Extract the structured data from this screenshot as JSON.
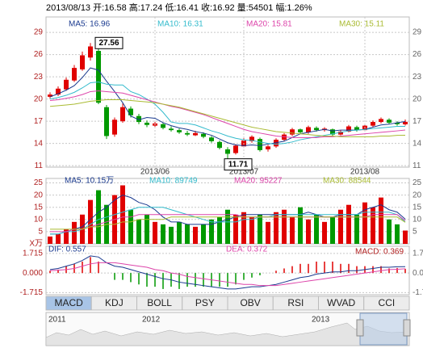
{
  "header": "2013/08/13 开:16.58 高:17.24 低:16.41 收:16.92 量:54501 幅:1.26%",
  "tabs": [
    "MACD",
    "KDJ",
    "BOLL",
    "PSY",
    "OBV",
    "RSI",
    "WVAD",
    "CCI"
  ],
  "navigator": {
    "labels": [
      "2011",
      "2012",
      "2013"
    ]
  },
  "chart_data": [
    {
      "type": "candlestick",
      "up_color": "#e00000",
      "down_color": "#009900",
      "categories": [
        null,
        null,
        null,
        null,
        null,
        null,
        null,
        null,
        null,
        null,
        null,
        null,
        null,
        "2013/06",
        null,
        null,
        null,
        null,
        null,
        null,
        null,
        null,
        null,
        null,
        "2013/07",
        null,
        null,
        null,
        null,
        null,
        null,
        null,
        null,
        null,
        null,
        null,
        null,
        null,
        null,
        "2013/08",
        null,
        null,
        null,
        null,
        null
      ],
      "ohlc": [
        [
          20.3,
          20.9,
          20.1,
          20.6
        ],
        [
          20.6,
          21.7,
          20.4,
          21.4
        ],
        [
          21.3,
          22.9,
          21.1,
          22.6
        ],
        [
          22.5,
          24.6,
          22.3,
          24.2
        ],
        [
          24.0,
          26.4,
          23.8,
          25.9
        ],
        [
          25.6,
          27.56,
          25.2,
          27.1
        ],
        [
          26.5,
          26.8,
          19.3,
          19.5
        ],
        [
          18.9,
          19.2,
          14.6,
          15.0
        ],
        [
          15.2,
          17.5,
          14.9,
          17.2
        ],
        [
          17.0,
          19.4,
          16.8,
          18.9
        ],
        [
          18.7,
          19.0,
          17.5,
          17.8
        ],
        [
          17.7,
          18.0,
          16.6,
          16.9
        ],
        [
          16.8,
          17.1,
          16.2,
          16.5
        ],
        [
          16.4,
          17.0,
          16.2,
          16.7
        ],
        [
          16.6,
          16.8,
          15.9,
          16.1
        ],
        [
          16.0,
          16.3,
          15.6,
          15.8
        ],
        [
          15.8,
          16.0,
          15.3,
          15.5
        ],
        [
          15.4,
          15.7,
          15.0,
          15.2
        ],
        [
          15.1,
          15.7,
          15.0,
          15.4
        ],
        [
          15.3,
          15.5,
          14.7,
          14.9
        ],
        [
          14.8,
          15.0,
          14.1,
          14.3
        ],
        [
          14.2,
          14.4,
          13.2,
          13.4
        ],
        [
          13.2,
          13.5,
          11.71,
          12.6
        ],
        [
          12.7,
          13.9,
          12.5,
          13.7
        ],
        [
          13.6,
          14.7,
          13.4,
          14.4
        ],
        [
          14.3,
          15.1,
          14.1,
          14.9
        ],
        [
          14.6,
          14.8,
          12.9,
          13.1
        ],
        [
          13.2,
          13.8,
          12.9,
          13.6
        ],
        [
          13.6,
          14.7,
          13.4,
          14.5
        ],
        [
          14.5,
          15.4,
          14.3,
          15.2
        ],
        [
          15.2,
          16.1,
          15.0,
          15.9
        ],
        [
          15.9,
          16.0,
          15.3,
          15.5
        ],
        [
          15.5,
          16.4,
          15.3,
          16.2
        ],
        [
          16.1,
          16.3,
          15.6,
          15.8
        ],
        [
          15.8,
          16.2,
          15.6,
          16.0
        ],
        [
          15.9,
          16.0,
          15.0,
          15.2
        ],
        [
          15.2,
          15.8,
          15.1,
          15.6
        ],
        [
          15.6,
          16.5,
          15.5,
          16.3
        ],
        [
          16.2,
          16.4,
          15.6,
          15.8
        ],
        [
          15.8,
          16.6,
          15.7,
          16.4
        ],
        [
          16.4,
          17.1,
          16.2,
          16.9
        ],
        [
          16.9,
          17.5,
          16.7,
          17.3
        ],
        [
          17.2,
          17.4,
          16.6,
          16.8
        ],
        [
          16.8,
          17.0,
          16.4,
          16.6
        ],
        [
          16.58,
          17.24,
          16.41,
          16.92
        ]
      ],
      "series": [
        {
          "name": "MA5: 16.96",
          "color": "#1a3a8f",
          "values": [
            20.3,
            20.7,
            21.2,
            21.8,
            22.9,
            24.2,
            23.9,
            22.4,
            21.0,
            19.5,
            17.7,
            17.2,
            17.5,
            17.4,
            16.8,
            16.4,
            16.1,
            15.9,
            15.6,
            15.4,
            15.1,
            14.6,
            14.1,
            13.8,
            13.7,
            13.8,
            13.7,
            13.9,
            14.1,
            14.3,
            14.8,
            15.3,
            15.5,
            15.7,
            15.9,
            15.7,
            15.8,
            15.8,
            15.8,
            15.9,
            16.2,
            16.5,
            16.6,
            16.8,
            16.96
          ]
        },
        {
          "name": "MA10: 16.31",
          "color": "#33bbcc",
          "values": [
            20.0,
            20.2,
            20.5,
            20.9,
            21.5,
            22.2,
            22.3,
            22.0,
            21.9,
            21.9,
            21.0,
            20.6,
            20.0,
            19.3,
            18.2,
            16.9,
            16.7,
            16.7,
            16.5,
            16.1,
            15.7,
            15.4,
            15.0,
            14.7,
            14.5,
            14.4,
            14.2,
            14.0,
            13.9,
            14.0,
            14.2,
            14.5,
            14.7,
            14.9,
            15.1,
            15.3,
            15.5,
            15.7,
            15.8,
            15.9,
            16.0,
            16.1,
            16.2,
            16.3,
            16.31
          ]
        },
        {
          "name": "MA20: 15.81",
          "color": "#dd44aa",
          "values": [
            19.8,
            19.9,
            20.1,
            20.3,
            20.6,
            21.0,
            21.1,
            21.0,
            20.9,
            20.8,
            20.5,
            20.2,
            19.9,
            19.6,
            19.3,
            19.0,
            18.8,
            18.5,
            18.2,
            17.9,
            17.5,
            17.1,
            16.7,
            16.3,
            15.9,
            15.6,
            15.4,
            15.2,
            15.0,
            14.9,
            14.8,
            14.8,
            14.8,
            14.8,
            14.9,
            14.9,
            15.0,
            15.1,
            15.2,
            15.3,
            15.4,
            15.5,
            15.6,
            15.7,
            15.81
          ]
        },
        {
          "name": "MA30: 15.11",
          "color": "#aabb33",
          "values": [
            19.0,
            19.1,
            19.2,
            19.3,
            19.5,
            19.7,
            19.8,
            19.9,
            19.9,
            19.9,
            19.8,
            19.7,
            19.6,
            19.5,
            19.3,
            19.1,
            18.9,
            18.6,
            18.3,
            18.0,
            17.7,
            17.4,
            17.1,
            16.8,
            16.5,
            16.2,
            16.0,
            15.8,
            15.6,
            15.5,
            15.4,
            15.3,
            15.2,
            15.1,
            15.0,
            15.0,
            14.9,
            14.9,
            14.9,
            14.9,
            14.9,
            15.0,
            15.0,
            15.1,
            15.11
          ]
        }
      ],
      "ylim": [
        10.8,
        30.1
      ],
      "yticks": [
        29,
        26,
        23,
        20,
        17,
        14,
        11
      ],
      "grid": true,
      "annotations": [
        {
          "text": "27.56",
          "x": 5,
          "y": 27.56
        },
        {
          "text": "11.71",
          "x": 22,
          "y": 11.71
        }
      ]
    },
    {
      "type": "bar",
      "y_unit": "X万",
      "values": [
        3,
        4,
        6,
        9,
        12,
        18,
        22,
        16,
        20,
        24,
        14,
        10,
        12,
        9,
        8,
        7,
        9,
        8,
        7,
        8,
        10,
        11,
        14,
        12,
        13,
        11,
        12,
        9,
        13,
        14,
        11,
        15,
        10,
        12,
        9,
        11,
        14,
        16,
        12,
        17,
        15,
        19,
        10,
        8,
        5.45
      ],
      "series": [
        {
          "name": "MA5: 10.15万",
          "color": "#1a3a8f",
          "values": [
            4,
            4,
            5,
            6,
            7,
            10,
            13,
            15,
            18,
            20,
            19,
            17,
            16,
            14,
            11,
            9,
            9,
            8,
            8,
            8,
            8,
            9,
            10,
            11,
            12,
            12,
            12,
            12,
            12,
            12,
            12,
            12,
            13,
            12,
            11,
            11,
            12,
            12,
            12,
            14,
            15,
            16,
            14,
            13,
            10.15
          ]
        },
        {
          "name": "MA10: 89749",
          "color": "#33bbcc",
          "values": [
            4,
            4,
            5,
            5,
            6,
            8,
            10,
            11,
            12,
            13,
            14,
            15,
            15,
            15,
            15,
            14,
            13,
            12,
            11,
            10,
            9,
            9,
            9,
            9,
            10,
            10,
            11,
            11,
            12,
            12,
            12,
            12,
            12,
            12,
            12,
            12,
            12,
            12,
            12,
            13,
            13,
            13,
            13,
            12,
            8.97
          ]
        },
        {
          "name": "MA20: 95227",
          "color": "#dd44aa",
          "values": [
            5,
            5,
            5,
            6,
            6,
            7,
            8,
            9,
            10,
            11,
            11,
            12,
            12,
            12,
            12,
            12,
            12,
            12,
            12,
            12,
            12,
            12,
            12,
            12,
            11,
            11,
            11,
            11,
            11,
            11,
            11,
            11,
            11,
            11,
            11,
            11,
            11,
            11,
            11,
            11,
            12,
            12,
            12,
            12,
            9.52
          ]
        },
        {
          "name": "MA30: 88544",
          "color": "#aabb33",
          "values": [
            6,
            6,
            6,
            6,
            6,
            7,
            7,
            8,
            8,
            9,
            9,
            10,
            10,
            10,
            10,
            11,
            11,
            11,
            11,
            11,
            11,
            11,
            11,
            11,
            11,
            11,
            11,
            11,
            11,
            11,
            11,
            11,
            11,
            11,
            11,
            11,
            11,
            11,
            11,
            11,
            11,
            11,
            11,
            11,
            8.85
          ]
        }
      ],
      "ylim": [
        0,
        26.5
      ],
      "yticks": [
        25,
        20,
        15,
        10,
        5
      ],
      "grid": true
    },
    {
      "type": "macd",
      "name": "MACD: 0.369",
      "values": [
        0.2,
        0.3,
        0.6,
        0.8,
        1.0,
        1.4,
        1.0,
        0,
        -0.6,
        -0.6,
        -0.8,
        -1.0,
        -1.2,
        -1.2,
        -1.4,
        -1.2,
        -1.4,
        -1.2,
        -1.2,
        -1.2,
        -1.2,
        -1.2,
        -1.2,
        -1.0,
        -0.6,
        -0.4,
        -0.2,
        0,
        0.2,
        0.4,
        0.6,
        0.8,
        0.8,
        1.0,
        1.0,
        1.0,
        0.8,
        0.8,
        0.6,
        0.6,
        0.6,
        0.6,
        0.4,
        0.44,
        0.369
      ],
      "series": [
        {
          "name": "DIF: 0.557",
          "color": "#1a3a8f",
          "values": [
            0.3,
            0.4,
            0.6,
            0.8,
            1.1,
            1.5,
            1.4,
            0.9,
            0.6,
            0.5,
            0.3,
            0.1,
            -0.1,
            -0.3,
            -0.5,
            -0.6,
            -0.8,
            -0.9,
            -1.0,
            -1.1,
            -1.2,
            -1.3,
            -1.4,
            -1.4,
            -1.3,
            -1.2,
            -1.2,
            -1.1,
            -1.0,
            -0.8,
            -0.6,
            -0.4,
            -0.3,
            -0.1,
            0.0,
            0.1,
            0.1,
            0.2,
            0.2,
            0.3,
            0.4,
            0.5,
            0.5,
            0.55,
            0.557
          ]
        },
        {
          "name": "DEA: 0.372",
          "color": "#dd44aa",
          "values": [
            0.2,
            0.25,
            0.3,
            0.4,
            0.6,
            0.8,
            0.9,
            0.9,
            0.9,
            0.8,
            0.7,
            0.6,
            0.5,
            0.3,
            0.2,
            0.0,
            -0.1,
            -0.3,
            -0.4,
            -0.5,
            -0.6,
            -0.7,
            -0.8,
            -0.9,
            -1.0,
            -1.0,
            -1.1,
            -1.1,
            -1.1,
            -1.0,
            -0.9,
            -0.8,
            -0.7,
            -0.6,
            -0.5,
            -0.4,
            -0.3,
            -0.2,
            -0.1,
            0.0,
            0.1,
            0.2,
            0.3,
            0.33,
            0.372
          ]
        }
      ],
      "ylim": [
        -1.9,
        2.2
      ],
      "yticks": [
        1.715,
        {
          "value": 0,
          "label": "0.000"
        },
        -1.715
      ],
      "grid": true
    }
  ]
}
